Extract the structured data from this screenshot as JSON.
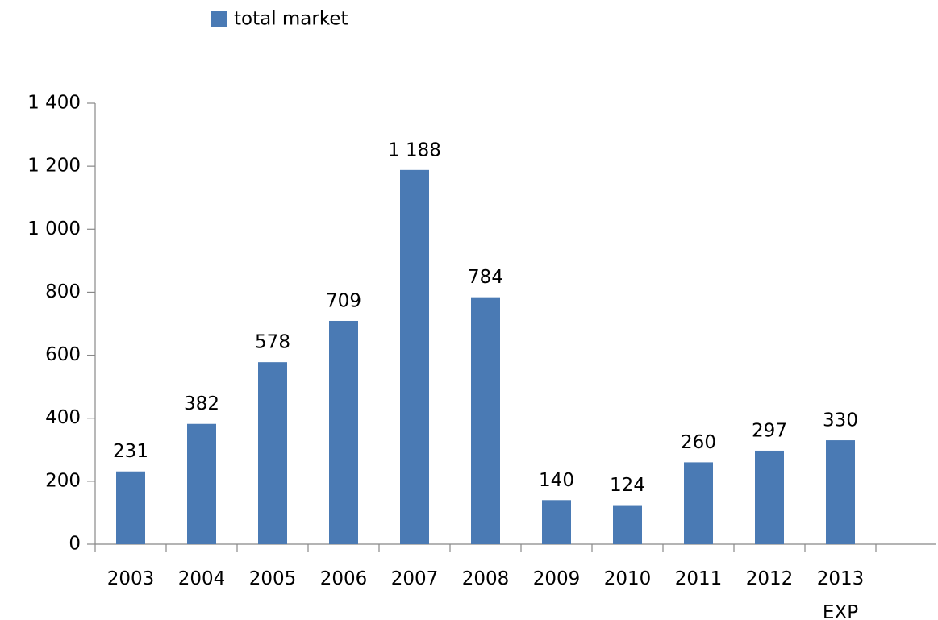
{
  "chart_data": {
    "type": "bar",
    "categories": [
      "2003",
      "2004",
      "2005",
      "2006",
      "2007",
      "2008",
      "2009",
      "2010",
      "2011",
      "2012",
      "2013\nEXP"
    ],
    "series": [
      {
        "name": "total market",
        "color": "#4a7ab4",
        "values": [
          231,
          382,
          578,
          709,
          1188,
          784,
          140,
          124,
          260,
          297,
          330
        ],
        "value_labels": [
          "231",
          "382",
          "578",
          "709",
          "1 188",
          "784",
          "140",
          "124",
          "260",
          "297",
          "330"
        ]
      }
    ],
    "ylim": [
      0,
      1400
    ],
    "yticks": [
      0,
      200,
      400,
      600,
      800,
      {
        "value": 1000,
        "label": "1 000"
      },
      {
        "value": 1200,
        "label": "1 200"
      },
      {
        "value": 1400,
        "label": "1 400"
      }
    ],
    "legend": "top"
  }
}
